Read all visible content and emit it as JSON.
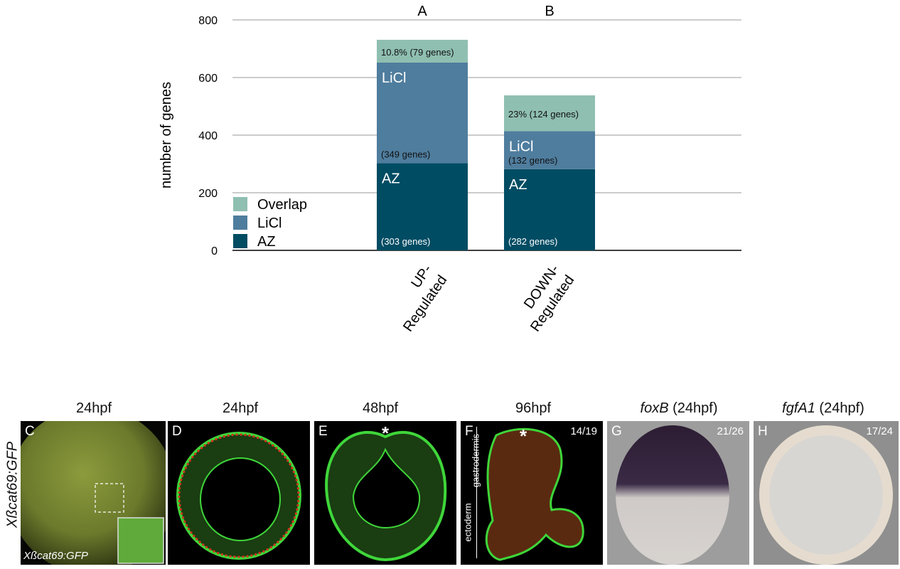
{
  "chart_data": {
    "type": "bar",
    "stacked": true,
    "ylabel": "number of genes",
    "ylim": [
      0,
      800
    ],
    "yticks": [
      0,
      200,
      400,
      600,
      800
    ],
    "grid": true,
    "legend_position": "bottom-left",
    "categories": [
      "UP-Regulated",
      "DOWN-Regulated"
    ],
    "category_lines": [
      [
        "UP-",
        "Regulated"
      ],
      [
        "DOWN-",
        "Regulated"
      ]
    ],
    "top_labels": [
      "A",
      "B"
    ],
    "series": [
      {
        "name": "AZ",
        "color": "#004c63",
        "values": [
          303,
          282
        ],
        "inner_label": "AZ",
        "annotations": [
          "(303 genes)",
          "(282 genes)"
        ]
      },
      {
        "name": "LiCl",
        "color": "#4f7d9e",
        "values": [
          349,
          132
        ],
        "inner_label": "LiCl",
        "annotations": [
          "(349 genes)",
          "(132 genes)"
        ]
      },
      {
        "name": "Overlap",
        "color": "#8fbfb0",
        "values": [
          79,
          124
        ],
        "inner_label": "",
        "annotations": [
          "10.8% (79 genes)",
          "23% (124 genes)"
        ]
      }
    ]
  },
  "images": {
    "side_label": "Xßcat69:GFP",
    "panels": [
      {
        "id": "C",
        "title": "24hpf",
        "title_italic": "",
        "inset_label": "Xßcat69:GFP",
        "count": ""
      },
      {
        "id": "D",
        "title": "24hpf",
        "title_italic": "",
        "count": ""
      },
      {
        "id": "E",
        "title": "48hpf",
        "title_italic": "",
        "marker": "*",
        "count": ""
      },
      {
        "id": "F",
        "title": "96hpf",
        "title_italic": "",
        "marker": "*",
        "count": "14/19",
        "tissue_labels": [
          "gastrodermis",
          "ectoderm"
        ]
      },
      {
        "id": "G",
        "title": " (24hpf)",
        "title_italic": "foxB",
        "count": "21/26"
      },
      {
        "id": "H",
        "title": " (24hpf)",
        "title_italic": "fgfA1",
        "count": "17/24"
      }
    ]
  }
}
